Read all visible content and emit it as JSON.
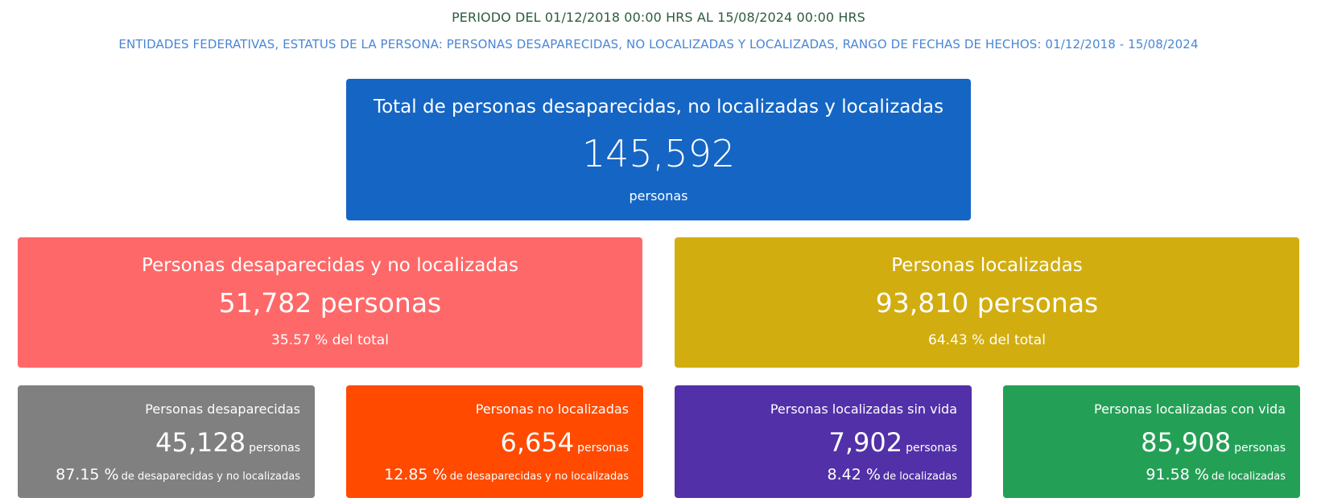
{
  "header": {
    "period": "PERIODO DEL 01/12/2018 00:00 HRS AL 15/08/2024 00:00 HRS",
    "filters": "ENTIDADES FEDERATIVAS, ESTATUS DE LA PERSONA: PERSONAS DESAPARECIDAS, NO LOCALIZADAS Y LOCALIZADAS, RANGO DE FECHAS DE HECHOS: 01/12/2018 - 15/08/2024"
  },
  "total": {
    "title": "Total de personas desaparecidas, no localizadas y localizadas",
    "value": "145,592",
    "unit": "personas",
    "color": "#1565c4"
  },
  "missing_unlocated": {
    "title": "Personas desaparecidas y no localizadas",
    "value": "51,782 personas",
    "percent": "35.57 % del total",
    "color": "#ff6868"
  },
  "located": {
    "title": "Personas localizadas",
    "value": "93,810 personas",
    "percent": "64.43 % del total",
    "color": "#d2ad0f"
  },
  "details": [
    {
      "title": "Personas desaparecidas",
      "value": "45,128",
      "unit": "personas",
      "percent": "87.15 %",
      "percent_label": "de desaparecidas y no localizadas",
      "color": "#808080"
    },
    {
      "title": "Personas no localizadas",
      "value": "6,654",
      "unit": "personas",
      "percent": "12.85 %",
      "percent_label": "de desaparecidas y no localizadas",
      "color": "#ff4a00"
    },
    {
      "title": "Personas localizadas sin vida",
      "value": "7,902",
      "unit": "personas",
      "percent": "8.42 %",
      "percent_label": "de localizadas",
      "color": "#5230a8"
    },
    {
      "title": "Personas localizadas con vida",
      "value": "85,908",
      "unit": "personas",
      "percent": "91.58 %",
      "percent_label": "de localizadas",
      "color": "#24a056"
    }
  ]
}
